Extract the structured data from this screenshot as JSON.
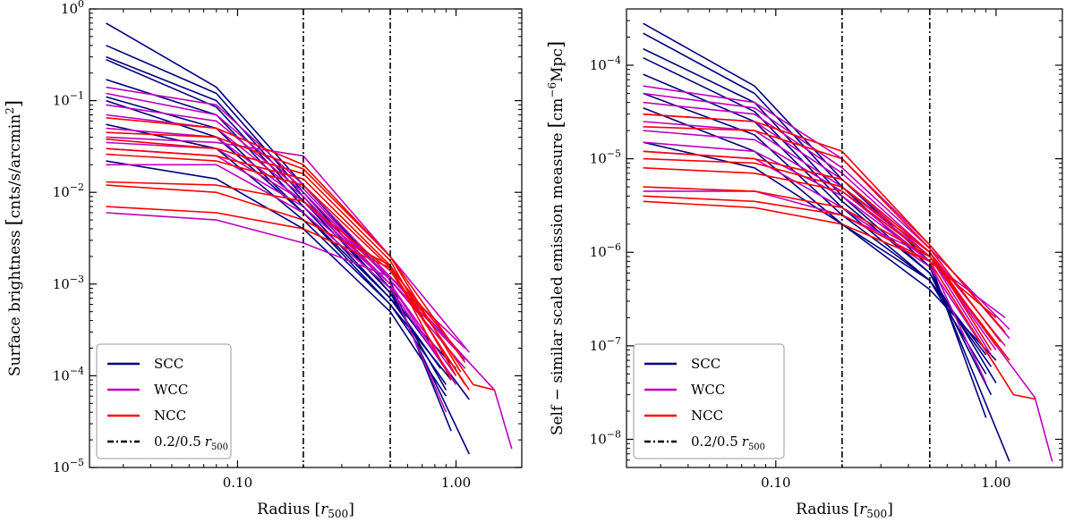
{
  "colors": {
    "SCC": "#000080",
    "WCC": "#bf00bf",
    "NCC": "#ff0000",
    "vline": "#000000"
  },
  "chart_data": [
    {
      "type": "line",
      "xscale": "log",
      "yscale": "log",
      "xlim": [
        0.021,
        2.0
      ],
      "ylim": [
        1e-05,
        1.0
      ],
      "xlabel_main": "Radius",
      "xlabel_bracket": "[",
      "xlabel_var": "r",
      "xlabel_sub": "500",
      "xlabel_close": "]",
      "ylabel_main": "Surface brightness",
      "ylabel_bracket": "[",
      "ylabel_unit": "cnts/s/arcmin",
      "ylabel_exp": "2",
      "ylabel_close": "]",
      "xticks": [
        {
          "value": 0.1,
          "label": "0.10"
        },
        {
          "value": 1.0,
          "label": "1.00"
        }
      ],
      "yticks": [
        {
          "value": 1e-05,
          "base": "10",
          "exp": "−5"
        },
        {
          "value": 0.0001,
          "base": "10",
          "exp": "−4"
        },
        {
          "value": 0.001,
          "base": "10",
          "exp": "−3"
        },
        {
          "value": 0.01,
          "base": "10",
          "exp": "−2"
        },
        {
          "value": 0.1,
          "base": "10",
          "exp": "−1"
        },
        {
          "value": 1.0,
          "base": "10",
          "exp": "0"
        }
      ],
      "vlines": [
        0.2,
        0.5
      ],
      "legend": {
        "position": "lower-left",
        "entries": [
          {
            "key": "SCC",
            "label": "SCC",
            "style": "solid"
          },
          {
            "key": "WCC",
            "label": "WCC",
            "style": "solid"
          },
          {
            "key": "NCC",
            "label": "NCC",
            "style": "solid"
          },
          {
            "key": "vline",
            "label": "0.2/0.5",
            "var": "r",
            "sub": "500",
            "style": "dashdot"
          }
        ]
      },
      "x": [
        0.025,
        0.08,
        0.2,
        0.5
      ],
      "series": [
        {
          "group": "SCC",
          "y": [
            0.7,
            0.14,
            0.012,
            0.0011
          ],
          "tail": [
            [
              0.95,
              2.5e-05
            ]
          ]
        },
        {
          "group": "SCC",
          "y": [
            0.4,
            0.12,
            0.01,
            0.0009
          ],
          "tail": [
            [
              1.15,
              1.4e-05
            ]
          ]
        },
        {
          "group": "SCC",
          "y": [
            0.3,
            0.1,
            0.009,
            0.0008
          ],
          "tail": [
            [
              1.15,
              5.5e-05
            ]
          ]
        },
        {
          "group": "SCC",
          "y": [
            0.28,
            0.085,
            0.008,
            0.0008
          ],
          "tail": [
            [
              0.9,
              7e-05
            ]
          ]
        },
        {
          "group": "SCC",
          "y": [
            0.17,
            0.07,
            0.007,
            0.0007
          ],
          "tail": [
            [
              0.85,
              0.00012
            ]
          ]
        },
        {
          "group": "SCC",
          "y": [
            0.11,
            0.05,
            0.006,
            0.0006
          ],
          "tail": [
            [
              0.9,
              8e-05
            ]
          ]
        },
        {
          "group": "SCC",
          "y": [
            0.055,
            0.03,
            0.005,
            0.0006
          ],
          "tail": [
            [
              0.95,
              9e-05
            ]
          ]
        },
        {
          "group": "SCC",
          "y": [
            0.022,
            0.014,
            0.004,
            0.0005
          ],
          "tail": [
            [
              0.9,
              6e-05
            ]
          ]
        },
        {
          "group": "SCC",
          "y": [
            0.1,
            0.04,
            0.006,
            0.0007
          ],
          "tail": [
            [
              1.0,
              0.00012
            ]
          ]
        },
        {
          "group": "WCC",
          "y": [
            0.14,
            0.09,
            0.012,
            0.0012
          ],
          "tail": [
            [
              1.15,
              0.00014
            ]
          ]
        },
        {
          "group": "WCC",
          "y": [
            0.12,
            0.07,
            0.011,
            0.0011
          ],
          "tail": [
            [
              1.1,
              0.00015
            ]
          ]
        },
        {
          "group": "WCC",
          "y": [
            0.09,
            0.06,
            0.01,
            0.0011
          ],
          "tail": [
            [
              1.1,
              0.00012
            ]
          ]
        },
        {
          "group": "WCC",
          "y": [
            0.07,
            0.05,
            0.009,
            0.001
          ],
          "tail": [
            [
              1.0,
              0.0001
            ]
          ]
        },
        {
          "group": "WCC",
          "y": [
            0.05,
            0.04,
            0.008,
            0.001
          ],
          "tail": [
            [
              0.95,
              0.0001
            ]
          ]
        },
        {
          "group": "WCC",
          "y": [
            0.04,
            0.035,
            0.025,
            0.002
          ],
          "tail": [
            [
              1.15,
              0.00018
            ]
          ]
        },
        {
          "group": "WCC",
          "y": [
            0.035,
            0.03,
            0.008,
            0.0012
          ],
          "tail": [
            [
              1.1,
              0.0002
            ]
          ]
        },
        {
          "group": "WCC",
          "y": [
            0.03,
            0.025,
            0.007,
            0.001
          ],
          "tail": [
            [
              0.9,
              4e-05
            ]
          ]
        },
        {
          "group": "WCC",
          "y": [
            0.02,
            0.02,
            0.006,
            0.0009
          ],
          "tail": [
            [
              1.0,
              8e-05
            ]
          ]
        },
        {
          "group": "WCC",
          "y": [
            0.006,
            0.005,
            0.0028,
            0.0012
          ],
          "tail": [
            [
              1.5,
              7e-05
            ],
            [
              1.8,
              1.6e-05
            ]
          ]
        },
        {
          "group": "NCC",
          "y": [
            0.065,
            0.05,
            0.02,
            0.002
          ],
          "tail": [
            [
              1.1,
              0.00014
            ]
          ]
        },
        {
          "group": "NCC",
          "y": [
            0.045,
            0.04,
            0.018,
            0.002
          ],
          "tail": [
            [
              1.05,
              0.00011
            ]
          ]
        },
        {
          "group": "NCC",
          "y": [
            0.038,
            0.03,
            0.016,
            0.0018
          ],
          "tail": [
            [
              1.0,
              0.0001
            ]
          ]
        },
        {
          "group": "NCC",
          "y": [
            0.03,
            0.025,
            0.014,
            0.0016
          ],
          "tail": [
            [
              0.95,
              9e-05
            ]
          ]
        },
        {
          "group": "NCC",
          "y": [
            0.026,
            0.022,
            0.012,
            0.0015
          ],
          "tail": [
            [
              1.1,
              8e-05
            ]
          ]
        },
        {
          "group": "NCC",
          "y": [
            0.013,
            0.012,
            0.008,
            0.0014
          ],
          "tail": [
            [
              1.15,
              7e-05
            ]
          ]
        },
        {
          "group": "NCC",
          "y": [
            0.012,
            0.01,
            0.005,
            0.0016
          ],
          "tail": [
            [
              1.2,
              8e-05
            ],
            [
              1.5,
              7e-05
            ]
          ]
        },
        {
          "group": "NCC",
          "y": [
            0.007,
            0.006,
            0.004,
            0.0015
          ],
          "tail": [
            [
              1.0,
              0.0002
            ]
          ]
        }
      ]
    },
    {
      "type": "line",
      "xscale": "log",
      "yscale": "log",
      "xlim": [
        0.021,
        2.0
      ],
      "ylim": [
        5e-09,
        0.0004
      ],
      "xlabel_main": "Radius",
      "xlabel_bracket": "[",
      "xlabel_var": "r",
      "xlabel_sub": "500",
      "xlabel_close": "]",
      "ylabel_main": "Self − similar scaled emission measure",
      "ylabel_bracket": "[",
      "ylabel_unit": "cm",
      "ylabel_exp": "−6",
      "ylabel_unit2": "Mpc",
      "ylabel_close": "]",
      "xticks": [
        {
          "value": 0.1,
          "label": "0.10"
        },
        {
          "value": 1.0,
          "label": "1.00"
        }
      ],
      "yticks": [
        {
          "value": 1e-08,
          "base": "10",
          "exp": "−8"
        },
        {
          "value": 1e-07,
          "base": "10",
          "exp": "−7"
        },
        {
          "value": 1e-06,
          "base": "10",
          "exp": "−6"
        },
        {
          "value": 1e-05,
          "base": "10",
          "exp": "−5"
        },
        {
          "value": 0.0001,
          "base": "10",
          "exp": "−4"
        }
      ],
      "vlines": [
        0.2,
        0.5
      ],
      "legend": {
        "position": "lower-left",
        "entries": [
          {
            "key": "SCC",
            "label": "SCC",
            "style": "solid"
          },
          {
            "key": "WCC",
            "label": "WCC",
            "style": "solid"
          },
          {
            "key": "NCC",
            "label": "NCC",
            "style": "solid"
          },
          {
            "key": "vline",
            "label": "0.2/0.5",
            "var": "r",
            "sub": "500",
            "style": "dashdot"
          }
        ]
      },
      "x": [
        0.025,
        0.08,
        0.2,
        0.5
      ],
      "series": [
        {
          "group": "SCC",
          "y": [
            0.00028,
            6e-05,
            6e-06,
            8e-07
          ],
          "tail": [
            [
              0.9,
              1.7e-08
            ]
          ]
        },
        {
          "group": "SCC",
          "y": [
            0.00022,
            5e-05,
            5e-06,
            7e-07
          ],
          "tail": [
            [
              1.15,
              5.8e-09
            ]
          ]
        },
        {
          "group": "SCC",
          "y": [
            0.00015,
            4e-05,
            4e-06,
            6e-07
          ],
          "tail": [
            [
              0.95,
              3e-08
            ]
          ]
        },
        {
          "group": "SCC",
          "y": [
            0.00012,
            3.2e-05,
            3.5e-06,
            6e-07
          ],
          "tail": [
            [
              1.0,
              4e-08
            ]
          ]
        },
        {
          "group": "SCC",
          "y": [
            8e-05,
            2.5e-05,
            3e-06,
            5e-07
          ],
          "tail": [
            [
              0.9,
              5e-08
            ]
          ]
        },
        {
          "group": "SCC",
          "y": [
            5e-05,
            1.8e-05,
            2.5e-06,
            5e-07
          ],
          "tail": [
            [
              0.95,
              6e-08
            ]
          ]
        },
        {
          "group": "SCC",
          "y": [
            3.5e-05,
            1.2e-05,
            2e-06,
            4e-07
          ],
          "tail": [
            [
              1.0,
              7e-08
            ]
          ]
        },
        {
          "group": "SCC",
          "y": [
            1.5e-05,
            8e-06,
            2e-06,
            5e-07
          ],
          "tail": [
            [
              0.9,
              8e-08
            ]
          ]
        },
        {
          "group": "WCC",
          "y": [
            6e-05,
            4e-05,
            1e-05,
            1.2e-06
          ],
          "tail": [
            [
              1.15,
              1.2e-07
            ]
          ]
        },
        {
          "group": "WCC",
          "y": [
            5e-05,
            3.5e-05,
            8e-06,
            1.1e-06
          ],
          "tail": [
            [
              1.15,
              1.5e-07
            ]
          ]
        },
        {
          "group": "WCC",
          "y": [
            4e-05,
            3e-05,
            7e-06,
            1e-06
          ],
          "tail": [
            [
              1.1,
              1e-07
            ]
          ]
        },
        {
          "group": "WCC",
          "y": [
            3e-05,
            2.5e-05,
            6e-06,
            9e-07
          ],
          "tail": [
            [
              1.0,
              9e-08
            ]
          ]
        },
        {
          "group": "WCC",
          "y": [
            2.5e-05,
            2e-05,
            5e-06,
            9e-07
          ],
          "tail": [
            [
              0.95,
              8e-08
            ]
          ]
        },
        {
          "group": "WCC",
          "y": [
            2e-05,
            1.6e-05,
            4.5e-06,
            8e-07
          ],
          "tail": [
            [
              1.1,
              2e-07
            ]
          ]
        },
        {
          "group": "WCC",
          "y": [
            1.5e-05,
            1.2e-05,
            4e-06,
            8e-07
          ],
          "tail": [
            [
              0.9,
              4e-08
            ]
          ]
        },
        {
          "group": "WCC",
          "y": [
            1.2e-05,
            1e-05,
            3e-06,
            7e-07
          ],
          "tail": [
            [
              1.0,
              6e-08
            ]
          ]
        },
        {
          "group": "WCC",
          "y": [
            4.5e-06,
            4.5e-06,
            2.5e-06,
            9e-07
          ],
          "tail": [
            [
              1.5,
              2.8e-08
            ],
            [
              1.8,
              5.8e-09
            ]
          ]
        },
        {
          "group": "NCC",
          "y": [
            3e-05,
            2.5e-05,
            1.2e-05,
            1.2e-06
          ],
          "tail": [
            [
              1.1,
              1.4e-07
            ]
          ]
        },
        {
          "group": "NCC",
          "y": [
            2.2e-05,
            2e-05,
            1e-05,
            1.1e-06
          ],
          "tail": [
            [
              1.05,
              1.1e-07
            ]
          ]
        },
        {
          "group": "NCC",
          "y": [
            1.2e-05,
            1e-05,
            6e-06,
            1e-06
          ],
          "tail": [
            [
              1.0,
              1e-07
            ]
          ]
        },
        {
          "group": "NCC",
          "y": [
            1e-05,
            9e-06,
            5e-06,
            1e-06
          ],
          "tail": [
            [
              0.95,
              9e-08
            ]
          ]
        },
        {
          "group": "NCC",
          "y": [
            8e-06,
            7e-06,
            4.5e-06,
            9e-07
          ],
          "tail": [
            [
              1.1,
              8e-08
            ]
          ]
        },
        {
          "group": "NCC",
          "y": [
            5e-06,
            4.5e-06,
            3e-06,
            9e-07
          ],
          "tail": [
            [
              1.15,
              7e-08
            ]
          ]
        },
        {
          "group": "NCC",
          "y": [
            4e-06,
            3.5e-06,
            2.5e-06,
            8e-07
          ],
          "tail": [
            [
              1.2,
              3e-08
            ],
            [
              1.5,
              2.7e-08
            ]
          ]
        },
        {
          "group": "NCC",
          "y": [
            3.5e-06,
            3e-06,
            2e-06,
            8e-07
          ],
          "tail": [
            [
              1.0,
              2e-07
            ]
          ]
        }
      ]
    }
  ]
}
